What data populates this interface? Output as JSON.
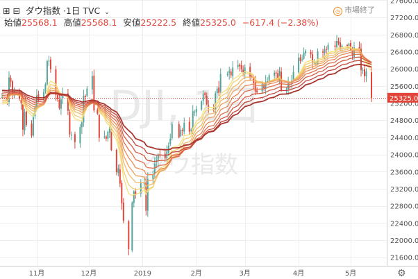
{
  "header": {
    "symbol": "ダウ指数",
    "interval": "1日",
    "source": "TVC"
  },
  "ohlc": {
    "open_label": "始値",
    "open": "25568.1",
    "high_label": "高値",
    "high": "25568.1",
    "low_label": "安値",
    "low": "25222.5",
    "close_label": "終値",
    "close": "25325.0",
    "change": "−617.4 (−2.38%)"
  },
  "status": {
    "text": "市場終了",
    "icon": "clock-icon"
  },
  "watermark": {
    "ticker": "DJI, 1日",
    "name": "ダウ指数"
  },
  "price_tag": "25325.0",
  "icons": {
    "expand": "expand-icon",
    "collapse": "collapse-icon",
    "settings": "gear-icon"
  },
  "colors": {
    "up": "#53a59b",
    "down": "#e2463b",
    "price_line": "#e2463b",
    "ribbon": [
      "#f5e07c",
      "#f4cf71",
      "#f2bb68",
      "#eea360",
      "#e88b57",
      "#df704d",
      "#d35a42",
      "#c0463a",
      "#a8362f"
    ]
  },
  "chart_data": {
    "type": "candlestick",
    "title": "ダウ指数, 1日",
    "y_ticks": [
      21600,
      22000,
      22400,
      22800,
      23200,
      23600,
      24000,
      24400,
      24800,
      25200,
      25600,
      26000,
      26400,
      26800,
      27200,
      27600
    ],
    "ylim": [
      21400,
      27700
    ],
    "x_ticks": [
      "11月",
      "12月",
      "2019",
      "2月",
      "3月",
      "4月",
      "5月"
    ],
    "last_close": 25325.0,
    "closes": [
      {
        "date": "2018-10-12",
        "close": 25340
      },
      {
        "date": "2018-10-15",
        "close": 25250
      },
      {
        "date": "2018-10-16",
        "close": 25800
      },
      {
        "date": "2018-10-17",
        "close": 25700
      },
      {
        "date": "2018-10-18",
        "close": 25380
      },
      {
        "date": "2018-10-19",
        "close": 25450
      },
      {
        "date": "2018-10-22",
        "close": 25300
      },
      {
        "date": "2018-10-23",
        "close": 25200
      },
      {
        "date": "2018-10-24",
        "close": 24580
      },
      {
        "date": "2018-10-25",
        "close": 24990
      },
      {
        "date": "2018-10-26",
        "close": 24690
      },
      {
        "date": "2018-10-29",
        "close": 24440
      },
      {
        "date": "2018-10-30",
        "close": 24880
      },
      {
        "date": "2018-10-31",
        "close": 25120
      },
      {
        "date": "2018-11-01",
        "close": 25380
      },
      {
        "date": "2018-11-02",
        "close": 25270
      },
      {
        "date": "2018-11-05",
        "close": 25460
      },
      {
        "date": "2018-11-06",
        "close": 25640
      },
      {
        "date": "2018-11-07",
        "close": 26180
      },
      {
        "date": "2018-11-08",
        "close": 26190
      },
      {
        "date": "2018-11-09",
        "close": 25990
      },
      {
        "date": "2018-11-12",
        "close": 25390
      },
      {
        "date": "2018-11-13",
        "close": 25290
      },
      {
        "date": "2018-11-14",
        "close": 25080
      },
      {
        "date": "2018-11-15",
        "close": 25290
      },
      {
        "date": "2018-11-16",
        "close": 25410
      },
      {
        "date": "2018-11-19",
        "close": 25020
      },
      {
        "date": "2018-11-20",
        "close": 24470
      },
      {
        "date": "2018-11-21",
        "close": 24460
      },
      {
        "date": "2018-11-23",
        "close": 24290
      },
      {
        "date": "2018-11-26",
        "close": 24640
      },
      {
        "date": "2018-11-27",
        "close": 24750
      },
      {
        "date": "2018-11-28",
        "close": 25370
      },
      {
        "date": "2018-11-29",
        "close": 25340
      },
      {
        "date": "2018-11-30",
        "close": 25540
      },
      {
        "date": "2018-12-03",
        "close": 25830
      },
      {
        "date": "2018-12-04",
        "close": 25030
      },
      {
        "date": "2018-12-06",
        "close": 24950
      },
      {
        "date": "2018-12-07",
        "close": 24390
      },
      {
        "date": "2018-12-10",
        "close": 24420
      },
      {
        "date": "2018-12-11",
        "close": 24370
      },
      {
        "date": "2018-12-12",
        "close": 24530
      },
      {
        "date": "2018-12-13",
        "close": 24600
      },
      {
        "date": "2018-12-14",
        "close": 24100
      },
      {
        "date": "2018-12-17",
        "close": 23590
      },
      {
        "date": "2018-12-18",
        "close": 23680
      },
      {
        "date": "2018-12-19",
        "close": 23320
      },
      {
        "date": "2018-12-20",
        "close": 22860
      },
      {
        "date": "2018-12-21",
        "close": 22450
      },
      {
        "date": "2018-12-24",
        "close": 21790
      },
      {
        "date": "2018-12-26",
        "close": 22880
      },
      {
        "date": "2018-12-27",
        "close": 23140
      },
      {
        "date": "2018-12-28",
        "close": 23060
      },
      {
        "date": "2018-12-31",
        "close": 23330
      },
      {
        "date": "2019-01-02",
        "close": 23350
      },
      {
        "date": "2019-01-03",
        "close": 22690
      },
      {
        "date": "2019-01-04",
        "close": 23430
      },
      {
        "date": "2019-01-07",
        "close": 23530
      },
      {
        "date": "2019-01-08",
        "close": 23790
      },
      {
        "date": "2019-01-09",
        "close": 23880
      },
      {
        "date": "2019-01-10",
        "close": 24000
      },
      {
        "date": "2019-01-11",
        "close": 24000
      },
      {
        "date": "2019-01-14",
        "close": 23910
      },
      {
        "date": "2019-01-15",
        "close": 24070
      },
      {
        "date": "2019-01-16",
        "close": 24210
      },
      {
        "date": "2019-01-17",
        "close": 24370
      },
      {
        "date": "2019-01-18",
        "close": 24710
      },
      {
        "date": "2019-01-22",
        "close": 24400
      },
      {
        "date": "2019-01-23",
        "close": 24580
      },
      {
        "date": "2019-01-24",
        "close": 24550
      },
      {
        "date": "2019-01-25",
        "close": 24740
      },
      {
        "date": "2019-01-28",
        "close": 24530
      },
      {
        "date": "2019-01-29",
        "close": 24580
      },
      {
        "date": "2019-01-30",
        "close": 25010
      },
      {
        "date": "2019-01-31",
        "close": 25000
      },
      {
        "date": "2019-02-01",
        "close": 25060
      },
      {
        "date": "2019-02-04",
        "close": 25240
      },
      {
        "date": "2019-02-05",
        "close": 25410
      },
      {
        "date": "2019-02-06",
        "close": 25390
      },
      {
        "date": "2019-02-07",
        "close": 25170
      },
      {
        "date": "2019-02-08",
        "close": 25110
      },
      {
        "date": "2019-02-11",
        "close": 25050
      },
      {
        "date": "2019-02-12",
        "close": 25430
      },
      {
        "date": "2019-02-13",
        "close": 25540
      },
      {
        "date": "2019-02-14",
        "close": 25440
      },
      {
        "date": "2019-02-15",
        "close": 25880
      },
      {
        "date": "2019-02-19",
        "close": 25890
      },
      {
        "date": "2019-02-20",
        "close": 25950
      },
      {
        "date": "2019-02-21",
        "close": 25850
      },
      {
        "date": "2019-02-22",
        "close": 26030
      },
      {
        "date": "2019-02-25",
        "close": 26090
      },
      {
        "date": "2019-02-26",
        "close": 26060
      },
      {
        "date": "2019-02-27",
        "close": 25990
      },
      {
        "date": "2019-02-28",
        "close": 25920
      },
      {
        "date": "2019-03-01",
        "close": 26030
      },
      {
        "date": "2019-03-04",
        "close": 25820
      },
      {
        "date": "2019-03-05",
        "close": 25810
      },
      {
        "date": "2019-03-06",
        "close": 25670
      },
      {
        "date": "2019-03-07",
        "close": 25470
      },
      {
        "date": "2019-03-08",
        "close": 25450
      },
      {
        "date": "2019-03-11",
        "close": 25650
      },
      {
        "date": "2019-03-12",
        "close": 25550
      },
      {
        "date": "2019-03-13",
        "close": 25700
      },
      {
        "date": "2019-03-14",
        "close": 25710
      },
      {
        "date": "2019-03-15",
        "close": 25850
      },
      {
        "date": "2019-03-18",
        "close": 25910
      },
      {
        "date": "2019-03-19",
        "close": 25890
      },
      {
        "date": "2019-03-20",
        "close": 25750
      },
      {
        "date": "2019-03-21",
        "close": 25960
      },
      {
        "date": "2019-03-22",
        "close": 25500
      },
      {
        "date": "2019-03-25",
        "close": 25520
      },
      {
        "date": "2019-03-26",
        "close": 25660
      },
      {
        "date": "2019-03-27",
        "close": 25630
      },
      {
        "date": "2019-03-28",
        "close": 25720
      },
      {
        "date": "2019-03-29",
        "close": 25930
      },
      {
        "date": "2019-04-01",
        "close": 26260
      },
      {
        "date": "2019-04-02",
        "close": 26180
      },
      {
        "date": "2019-04-03",
        "close": 26220
      },
      {
        "date": "2019-04-04",
        "close": 26380
      },
      {
        "date": "2019-04-05",
        "close": 26420
      },
      {
        "date": "2019-04-08",
        "close": 26340
      },
      {
        "date": "2019-04-09",
        "close": 26150
      },
      {
        "date": "2019-04-10",
        "close": 26160
      },
      {
        "date": "2019-04-11",
        "close": 26140
      },
      {
        "date": "2019-04-12",
        "close": 26410
      },
      {
        "date": "2019-04-15",
        "close": 26380
      },
      {
        "date": "2019-04-16",
        "close": 26450
      },
      {
        "date": "2019-04-17",
        "close": 26450
      },
      {
        "date": "2019-04-18",
        "close": 26560
      },
      {
        "date": "2019-04-22",
        "close": 26510
      },
      {
        "date": "2019-04-23",
        "close": 26650
      },
      {
        "date": "2019-04-24",
        "close": 26600
      },
      {
        "date": "2019-04-25",
        "close": 26460
      },
      {
        "date": "2019-04-26",
        "close": 26540
      },
      {
        "date": "2019-04-29",
        "close": 26550
      },
      {
        "date": "2019-04-30",
        "close": 26590
      },
      {
        "date": "2019-05-01",
        "close": 26430
      },
      {
        "date": "2019-05-02",
        "close": 26310
      },
      {
        "date": "2019-05-03",
        "close": 26500
      },
      {
        "date": "2019-05-06",
        "close": 26440
      },
      {
        "date": "2019-05-07",
        "close": 25970
      },
      {
        "date": "2019-05-08",
        "close": 25970
      },
      {
        "date": "2019-05-09",
        "close": 25830
      },
      {
        "date": "2019-05-10",
        "close": 25940
      },
      {
        "date": "2019-05-13",
        "close": 25325
      }
    ]
  }
}
